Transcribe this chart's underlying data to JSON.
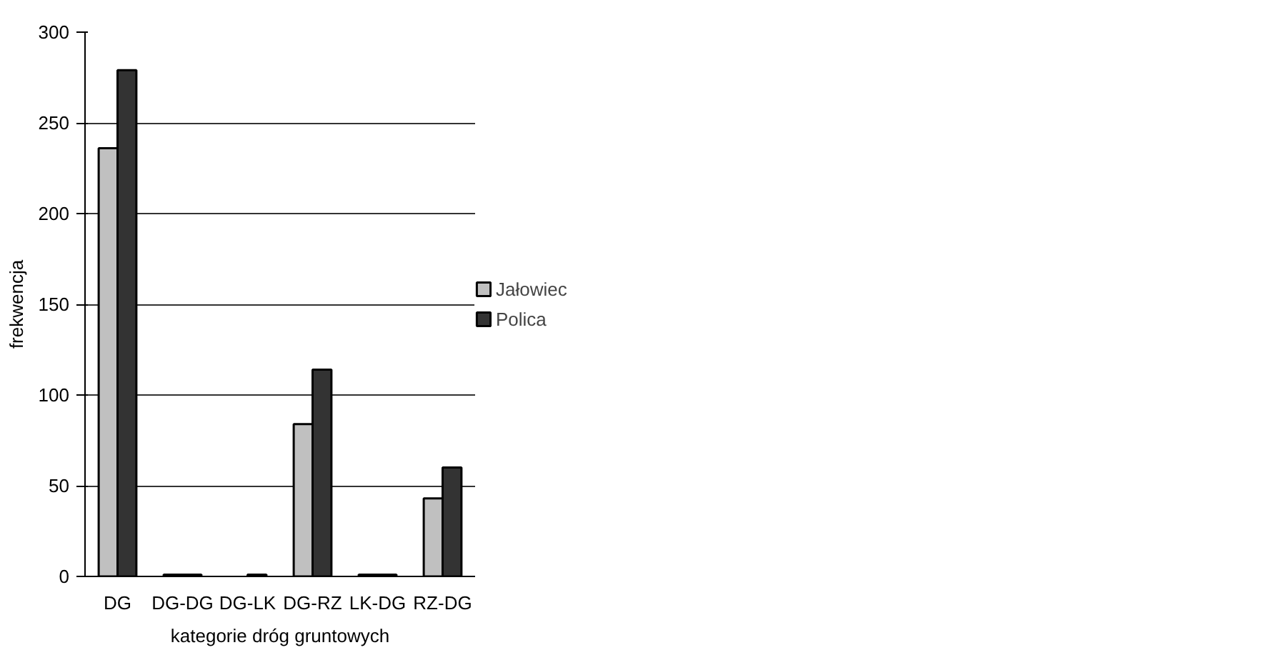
{
  "chart_data": {
    "type": "bar",
    "xlabel": "kategorie dróg gruntowych",
    "ylabel": "frekwencja",
    "categories": [
      "DG",
      "DG-DG",
      "DG-LK",
      "DG-RZ",
      "LK-DG",
      "RZ-DG"
    ],
    "series": [
      {
        "name": "Jałowiec",
        "color": "#c0c0c0",
        "values": [
          236,
          1,
          0,
          84,
          1,
          43
        ]
      },
      {
        "name": "Polica",
        "color": "#333333",
        "values": [
          279,
          1,
          1,
          114,
          1,
          60
        ]
      }
    ],
    "ylim": [
      0,
      300
    ],
    "yticks": [
      0,
      50,
      100,
      150,
      200,
      250,
      300
    ],
    "grid": "y",
    "legend": "right"
  }
}
